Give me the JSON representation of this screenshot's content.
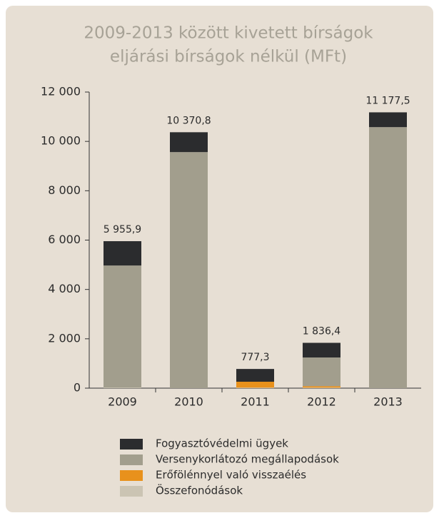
{
  "chart_data": {
    "type": "stacked_bar",
    "title": [
      "2009-2013 között kivetett bírságok",
      "eljárási bírságok nélkül (MFt)"
    ],
    "categories": [
      "2009",
      "2010",
      "2011",
      "2012",
      "2013"
    ],
    "series": [
      {
        "name": "Fogyasztóvédelmi ügyek",
        "color": "#2b2c2e",
        "values": [
          986,
          805,
          517.3,
          593.4,
          599.5
        ]
      },
      {
        "name": "Versenykorlátozó megállapodások",
        "color": "#a29e8d",
        "values": [
          4950,
          9566,
          0,
          1163,
          10578
        ]
      },
      {
        "name": "Erőfölénnyel való visszaélés",
        "color": "#e8911c",
        "values": [
          0,
          0,
          240,
          60,
          0
        ]
      },
      {
        "name": "Összefonódások",
        "color": "#cbc4b3",
        "values": [
          19.9,
          0,
          20,
          20,
          0
        ]
      }
    ],
    "totals": {
      "values": [
        5955.9,
        10370.8,
        777.3,
        1836.4,
        11177.5
      ],
      "value_labels": [
        "5 955,9",
        "10 370,8",
        "777,3",
        "1 836,4",
        "11 177,5"
      ]
    },
    "ylim": [
      0,
      12000
    ],
    "yticks": [
      0,
      {
        "value": 2000,
        "label": "2 000"
      },
      {
        "value": 4000,
        "label": "4 000"
      },
      {
        "value": 6000,
        "label": "6 000"
      },
      {
        "value": 8000,
        "label": "8 000"
      },
      {
        "value": 10000,
        "label": "10 000"
      },
      {
        "value": 12000,
        "label": "12 000"
      }
    ]
  }
}
